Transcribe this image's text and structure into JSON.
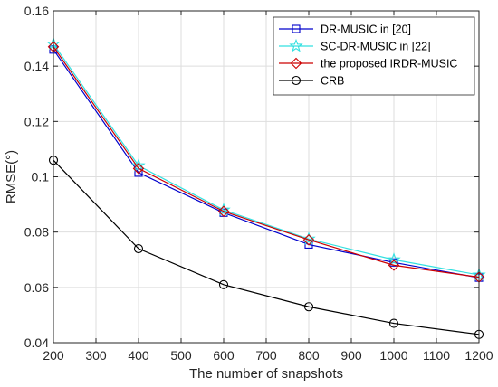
{
  "chart_data": {
    "type": "line",
    "xlabel": "The number of snapshots",
    "ylabel": "RMSE(°)",
    "xlim": [
      200,
      1200
    ],
    "ylim": [
      0.04,
      0.16
    ],
    "xticks": [
      200,
      300,
      400,
      500,
      600,
      700,
      800,
      900,
      1000,
      1100,
      1200
    ],
    "yticks": [
      0.04,
      0.06,
      0.08,
      0.1,
      0.12,
      0.14,
      0.16
    ],
    "ytick_labels": [
      "0.04",
      "0.06",
      "0.08",
      "0.1",
      "0.12",
      "0.14",
      "0.16"
    ],
    "grid": true,
    "legend_position": "top-right",
    "x": [
      200,
      400,
      600,
      800,
      1000,
      1200
    ],
    "series": [
      {
        "name": "DR-MUSIC in [20]",
        "color": "#0000cc",
        "marker": "square",
        "values": [
          0.146,
          0.1015,
          0.087,
          0.0755,
          0.069,
          0.0635
        ]
      },
      {
        "name": "SC-DR-MUSIC in [22]",
        "color": "#33e0e0",
        "marker": "star",
        "values": [
          0.148,
          0.104,
          0.088,
          0.0775,
          0.07,
          0.0645
        ]
      },
      {
        "name": "the proposed IRDR-MUSIC",
        "color": "#cc0000",
        "marker": "diamond",
        "values": [
          0.147,
          0.103,
          0.0875,
          0.0772,
          0.068,
          0.0637
        ]
      },
      {
        "name": "CRB",
        "color": "#000000",
        "marker": "circle",
        "values": [
          0.106,
          0.074,
          0.061,
          0.053,
          0.047,
          0.043
        ]
      }
    ]
  }
}
